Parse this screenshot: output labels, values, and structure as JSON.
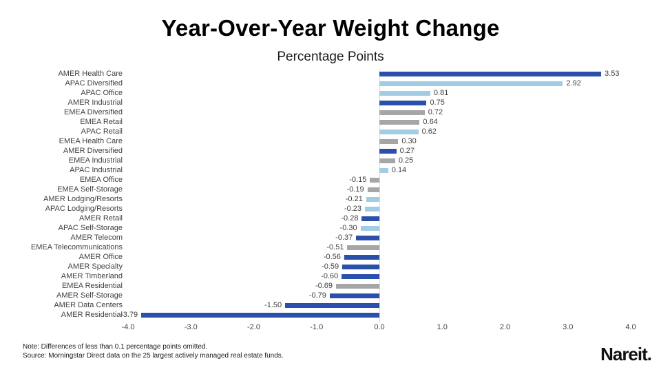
{
  "header": {
    "title": "Year-Over-Year Weight Change",
    "subtitle": "Percentage Points"
  },
  "chart_data": {
    "type": "bar",
    "orientation": "horizontal",
    "title": "Year-Over-Year Weight Change",
    "units_label": "Percentage Points",
    "xlim": [
      -4.0,
      4.0
    ],
    "x_ticks": [
      "-4.0",
      "-3.0",
      "-2.0",
      "-1.0",
      "0.0",
      "1.0",
      "2.0",
      "3.0",
      "4.0"
    ],
    "grid": "zero-line-only",
    "palette": {
      "dark_blue": "#2a50ac",
      "light_blue": "#a1cce3",
      "gray": "#a6a6a6"
    },
    "rows": [
      {
        "label": "AMER Health Care",
        "value": 3.53,
        "color": "dark_blue"
      },
      {
        "label": "APAC Diversified",
        "value": 2.92,
        "color": "light_blue"
      },
      {
        "label": "APAC Office",
        "value": 0.81,
        "color": "light_blue"
      },
      {
        "label": "AMER Industrial",
        "value": 0.75,
        "color": "dark_blue"
      },
      {
        "label": "EMEA Diversified",
        "value": 0.72,
        "color": "gray"
      },
      {
        "label": "EMEA Retail",
        "value": 0.64,
        "color": "gray"
      },
      {
        "label": "APAC Retail",
        "value": 0.62,
        "color": "light_blue"
      },
      {
        "label": "EMEA Health Care",
        "value": 0.3,
        "color": "gray"
      },
      {
        "label": "AMER Diversified",
        "value": 0.27,
        "color": "dark_blue"
      },
      {
        "label": "EMEA Industrial",
        "value": 0.25,
        "color": "gray"
      },
      {
        "label": "APAC Industrial",
        "value": 0.14,
        "color": "light_blue"
      },
      {
        "label": "EMEA Office",
        "value": -0.15,
        "color": "gray"
      },
      {
        "label": "EMEA Self-Storage",
        "value": -0.19,
        "color": "gray"
      },
      {
        "label": "AMER Lodging/Resorts",
        "value": -0.21,
        "color": "light_blue"
      },
      {
        "label": "APAC Lodging/Resorts",
        "value": -0.23,
        "color": "light_blue"
      },
      {
        "label": "AMER Retail",
        "value": -0.28,
        "color": "dark_blue"
      },
      {
        "label": "APAC Self-Storage",
        "value": -0.3,
        "color": "light_blue"
      },
      {
        "label": "AMER Telecom",
        "value": -0.37,
        "color": "dark_blue"
      },
      {
        "label": "EMEA Telecommunications",
        "value": -0.51,
        "color": "gray"
      },
      {
        "label": "AMER Office",
        "value": -0.56,
        "color": "dark_blue"
      },
      {
        "label": "AMER Specialty",
        "value": -0.59,
        "color": "dark_blue"
      },
      {
        "label": "AMER Timberland",
        "value": -0.6,
        "color": "dark_blue"
      },
      {
        "label": "EMEA Residential",
        "value": -0.69,
        "color": "gray"
      },
      {
        "label": "AMER Self-Storage",
        "value": -0.79,
        "color": "dark_blue"
      },
      {
        "label": "AMER Data Centers",
        "value": -1.5,
        "color": "dark_blue"
      },
      {
        "label": "AMER Residential",
        "value": -3.79,
        "color": "dark_blue"
      }
    ]
  },
  "notes": {
    "line1": "Note: Differences of less than 0.1 percentage points omitted.",
    "line2": "Source: Morningstar Direct data on the 25 largest actively managed real estate funds."
  },
  "branding": {
    "logo": "Nareit."
  }
}
